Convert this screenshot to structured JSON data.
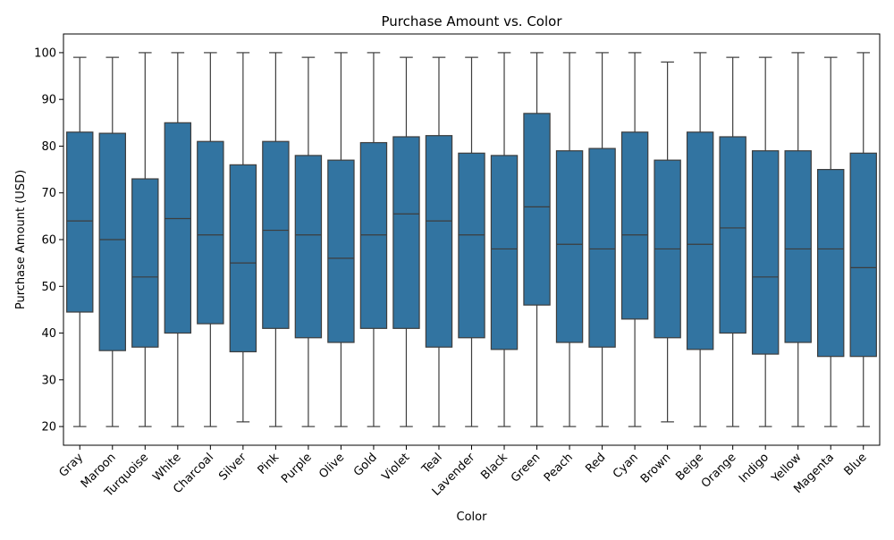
{
  "chart_data": {
    "type": "box",
    "title": "Purchase Amount vs. Color",
    "xlabel": "Color",
    "ylabel": "Purchase Amount (USD)",
    "ylim": [
      16,
      104
    ],
    "yticks": [
      20,
      30,
      40,
      50,
      60,
      70,
      80,
      90,
      100
    ],
    "box_color": "#3274a1",
    "edge_color": "#3d3d3d",
    "grid": false,
    "categories": [
      "Gray",
      "Maroon",
      "Turquoise",
      "White",
      "Charcoal",
      "Silver",
      "Pink",
      "Purple",
      "Olive",
      "Gold",
      "Violet",
      "Teal",
      "Lavender",
      "Black",
      "Green",
      "Peach",
      "Red",
      "Cyan",
      "Brown",
      "Beige",
      "Orange",
      "Indigo",
      "Yellow",
      "Magenta",
      "Blue"
    ],
    "boxes": [
      {
        "min": 20,
        "q1": 44.5,
        "median": 64,
        "q3": 83,
        "max": 99
      },
      {
        "min": 20,
        "q1": 36.25,
        "median": 60,
        "q3": 82.75,
        "max": 99
      },
      {
        "min": 20,
        "q1": 37,
        "median": 52,
        "q3": 73,
        "max": 100
      },
      {
        "min": 20,
        "q1": 40,
        "median": 64.5,
        "q3": 85,
        "max": 100
      },
      {
        "min": 20,
        "q1": 42,
        "median": 61,
        "q3": 81,
        "max": 100
      },
      {
        "min": 21,
        "q1": 36,
        "median": 55,
        "q3": 76,
        "max": 100
      },
      {
        "min": 20,
        "q1": 41,
        "median": 62,
        "q3": 81,
        "max": 100
      },
      {
        "min": 20,
        "q1": 39,
        "median": 61,
        "q3": 78,
        "max": 99
      },
      {
        "min": 20,
        "q1": 38,
        "median": 56,
        "q3": 77,
        "max": 100
      },
      {
        "min": 20,
        "q1": 41,
        "median": 61,
        "q3": 80.75,
        "max": 100
      },
      {
        "min": 20,
        "q1": 41,
        "median": 65.5,
        "q3": 82,
        "max": 99
      },
      {
        "min": 20,
        "q1": 37,
        "median": 64,
        "q3": 82.25,
        "max": 99
      },
      {
        "min": 20,
        "q1": 39,
        "median": 61,
        "q3": 78.5,
        "max": 99
      },
      {
        "min": 20,
        "q1": 36.5,
        "median": 58,
        "q3": 78,
        "max": 100
      },
      {
        "min": 20,
        "q1": 46,
        "median": 67,
        "q3": 87,
        "max": 100
      },
      {
        "min": 20,
        "q1": 38,
        "median": 59,
        "q3": 79,
        "max": 100
      },
      {
        "min": 20,
        "q1": 37,
        "median": 58,
        "q3": 79.5,
        "max": 100
      },
      {
        "min": 20,
        "q1": 43,
        "median": 61,
        "q3": 83,
        "max": 100
      },
      {
        "min": 21,
        "q1": 39,
        "median": 58,
        "q3": 77,
        "max": 98
      },
      {
        "min": 20,
        "q1": 36.5,
        "median": 59,
        "q3": 83,
        "max": 100
      },
      {
        "min": 20,
        "q1": 40,
        "median": 62.5,
        "q3": 82,
        "max": 99
      },
      {
        "min": 20,
        "q1": 35.5,
        "median": 52,
        "q3": 79,
        "max": 99
      },
      {
        "min": 20,
        "q1": 38,
        "median": 58,
        "q3": 79,
        "max": 100
      },
      {
        "min": 20,
        "q1": 35,
        "median": 58,
        "q3": 75,
        "max": 99
      },
      {
        "min": 20,
        "q1": 35,
        "median": 54,
        "q3": 78.5,
        "max": 100
      }
    ]
  }
}
